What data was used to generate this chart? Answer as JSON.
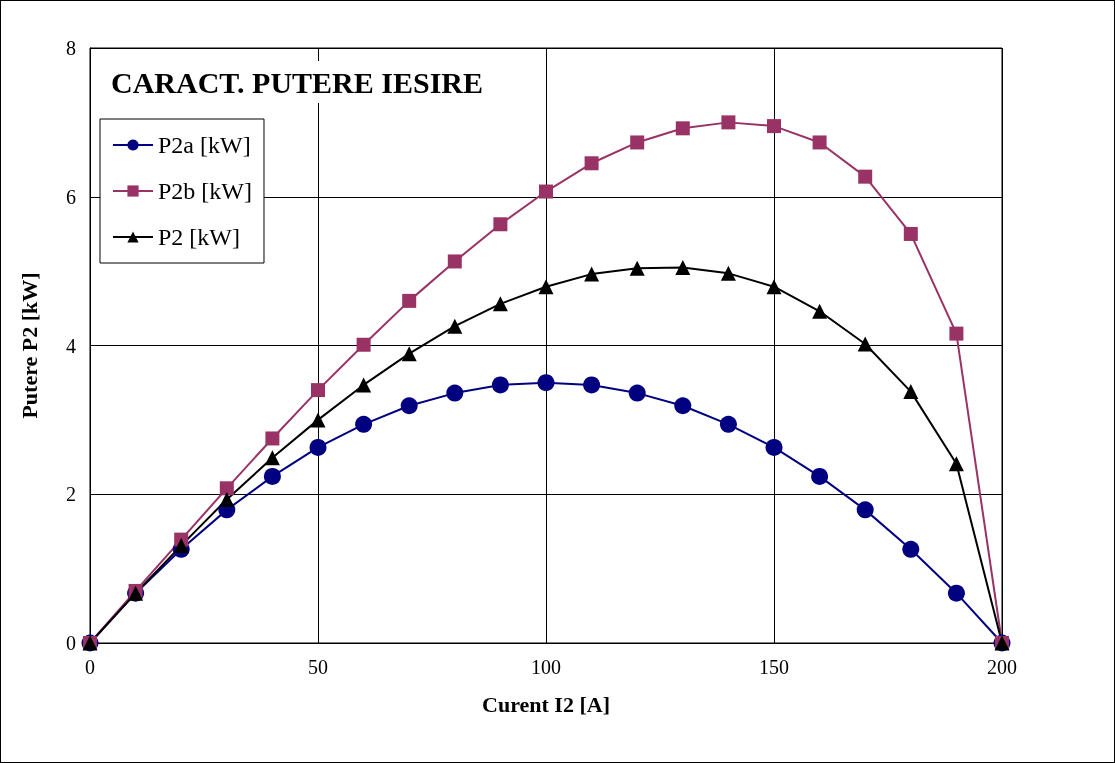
{
  "chart_data": {
    "type": "line",
    "title": "CARACT. PUTERE IESIRE",
    "xlabel": "Curent I2 [A]",
    "ylabel": "Putere P2 [kW]",
    "x": [
      0,
      10,
      20,
      30,
      40,
      50,
      60,
      70,
      80,
      90,
      100,
      110,
      120,
      130,
      140,
      150,
      160,
      170,
      180,
      190,
      200
    ],
    "series": [
      {
        "name": "P2a [kW]",
        "color": "#000080",
        "marker": "circle",
        "values": [
          0,
          0.67,
          1.26,
          1.79,
          2.24,
          2.63,
          2.94,
          3.19,
          3.36,
          3.47,
          3.5,
          3.47,
          3.36,
          3.19,
          2.94,
          2.63,
          2.24,
          1.79,
          1.26,
          0.67,
          0
        ]
      },
      {
        "name": "P2b [kW]",
        "color": "#993366",
        "marker": "square",
        "values": [
          0,
          0.7,
          1.39,
          2.08,
          2.75,
          3.4,
          4.01,
          4.6,
          5.13,
          5.63,
          6.07,
          6.45,
          6.73,
          6.92,
          7.0,
          6.95,
          6.73,
          6.27,
          5.5,
          4.16,
          0
        ]
      },
      {
        "name": "P2 [kW]",
        "color": "#000000",
        "marker": "triangle",
        "values": [
          0,
          0.67,
          1.31,
          1.93,
          2.49,
          3.0,
          3.47,
          3.89,
          4.26,
          4.56,
          4.79,
          4.96,
          5.04,
          5.05,
          4.97,
          4.79,
          4.46,
          4.02,
          3.38,
          2.41,
          0
        ]
      }
    ],
    "xlim": [
      0,
      200
    ],
    "xticks": [
      0,
      50,
      100,
      150,
      200
    ],
    "ylim": [
      0,
      8
    ],
    "yticks": [
      0,
      2,
      4,
      6,
      8
    ],
    "grid": true,
    "legend": "top left",
    "line_style": "solid"
  }
}
